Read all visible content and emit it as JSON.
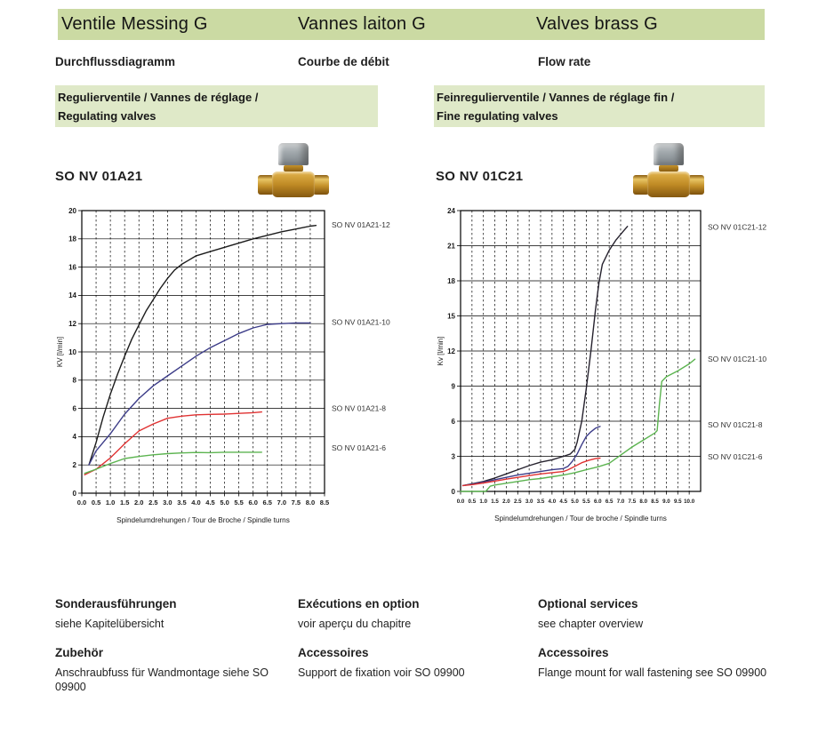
{
  "header": {
    "titles": [
      "Ventile Messing G",
      "Vannes laiton G",
      "Valves brass G"
    ],
    "bg_color": "#cbdaa3"
  },
  "subtitles": [
    "Durchflussdiagramm",
    "Courbe de débit",
    "Flow rate"
  ],
  "banners": [
    {
      "line1": "Regulierventile / Vannes de réglage /",
      "line2": "Regulating valves"
    },
    {
      "line1": "Feinregulierventile / Vannes de réglage fin /",
      "line2": "Fine regulating valves"
    }
  ],
  "banner_bg_color": "#dfe9c8",
  "products": [
    {
      "code": "SO NV 01A21"
    },
    {
      "code": "SO NV 01C21"
    }
  ],
  "footer": {
    "columns": [
      {
        "sections": [
          {
            "heading": "Sonderausführungen",
            "body": "siehe Kapitelübersicht"
          },
          {
            "heading": "Zubehör",
            "body": "Anschraubfuss für Wandmontage siehe SO 09900"
          }
        ]
      },
      {
        "sections": [
          {
            "heading": "Exécutions en option",
            "body": "voir aperçu du chapitre"
          },
          {
            "heading": "Accessoires",
            "body": "Support de fixation voir SO 09900"
          }
        ]
      },
      {
        "sections": [
          {
            "heading": "Optional services",
            "body": "see chapter overview"
          },
          {
            "heading": "Accessoires",
            "body": "Flange mount for wall fastening see SO 09900"
          }
        ]
      }
    ]
  },
  "chart_data": [
    {
      "type": "line",
      "product": "SO NV 01A21",
      "xlabel": "Spindelumdrehungen / Tour de Broche / Spindle turns",
      "ylabel": "KV [l/min]",
      "xlim": [
        0,
        8.5
      ],
      "ylim": [
        0,
        20
      ],
      "xtick_step": 0.5,
      "ytick_step": 2,
      "xtick_labels": [
        "0.0",
        "0.5",
        "1.0",
        "1.5",
        "2.0",
        "2.5",
        "3.0",
        "3.5",
        "4.0",
        "4.5",
        "5.0",
        "5.5",
        "6.0",
        "6.5",
        "7.0",
        "7.5",
        "8.0",
        "8.5"
      ],
      "grid": {
        "vertical": "dashed",
        "horizontal": "solid"
      },
      "legend_position": "right-of-plot",
      "series": [
        {
          "name": "SO NV 01A21-12",
          "color": "#1c1c1c",
          "label_y": 19.0,
          "points": [
            [
              0.25,
              2.0
            ],
            [
              0.5,
              3.6
            ],
            [
              0.75,
              5.4
            ],
            [
              1.0,
              7.0
            ],
            [
              1.25,
              8.4
            ],
            [
              1.5,
              9.7
            ],
            [
              1.75,
              10.9
            ],
            [
              2.0,
              11.9
            ],
            [
              2.25,
              12.9
            ],
            [
              2.5,
              13.7
            ],
            [
              2.75,
              14.5
            ],
            [
              3.0,
              15.2
            ],
            [
              3.25,
              15.8
            ],
            [
              3.5,
              16.2
            ],
            [
              3.75,
              16.5
            ],
            [
              4.0,
              16.8
            ],
            [
              4.5,
              17.1
            ],
            [
              5.0,
              17.4
            ],
            [
              5.5,
              17.7
            ],
            [
              6.0,
              18.0
            ],
            [
              6.5,
              18.25
            ],
            [
              7.0,
              18.5
            ],
            [
              7.5,
              18.7
            ],
            [
              8.0,
              18.9
            ],
            [
              8.2,
              18.95
            ]
          ]
        },
        {
          "name": "SO NV 01A21-10",
          "color": "#3c3c88",
          "label_y": 12.1,
          "points": [
            [
              0.25,
              2.0
            ],
            [
              0.5,
              3.0
            ],
            [
              1.0,
              4.2
            ],
            [
              1.5,
              5.6
            ],
            [
              2.0,
              6.7
            ],
            [
              2.5,
              7.6
            ],
            [
              3.0,
              8.3
            ],
            [
              3.5,
              9.0
            ],
            [
              4.0,
              9.7
            ],
            [
              4.5,
              10.3
            ],
            [
              5.0,
              10.8
            ],
            [
              5.5,
              11.3
            ],
            [
              6.0,
              11.7
            ],
            [
              6.5,
              11.95
            ],
            [
              7.0,
              12.0
            ],
            [
              7.5,
              12.05
            ],
            [
              8.0,
              12.05
            ]
          ]
        },
        {
          "name": "SO NV 01A21-8",
          "color": "#e03232",
          "label_y": 6.0,
          "points": [
            [
              0.1,
              1.3
            ],
            [
              0.5,
              1.7
            ],
            [
              1.0,
              2.5
            ],
            [
              1.5,
              3.5
            ],
            [
              2.0,
              4.4
            ],
            [
              2.5,
              4.9
            ],
            [
              3.0,
              5.3
            ],
            [
              3.5,
              5.45
            ],
            [
              4.0,
              5.55
            ],
            [
              4.5,
              5.58
            ],
            [
              5.0,
              5.6
            ],
            [
              5.5,
              5.65
            ],
            [
              6.0,
              5.7
            ],
            [
              6.3,
              5.75
            ]
          ]
        },
        {
          "name": "SO NV 01A21-6",
          "color": "#5cb450",
          "label_y": 3.2,
          "points": [
            [
              0.1,
              1.4
            ],
            [
              0.5,
              1.7
            ],
            [
              1.0,
              2.1
            ],
            [
              1.5,
              2.45
            ],
            [
              2.0,
              2.6
            ],
            [
              2.5,
              2.72
            ],
            [
              3.0,
              2.8
            ],
            [
              3.5,
              2.85
            ],
            [
              4.0,
              2.88
            ],
            [
              4.5,
              2.87
            ],
            [
              5.0,
              2.9
            ],
            [
              5.5,
              2.9
            ],
            [
              6.0,
              2.9
            ],
            [
              6.3,
              2.9
            ]
          ]
        }
      ]
    },
    {
      "type": "line",
      "product": "SO NV 01C21",
      "xlabel": "Spindelumdrehungen / Tour de broche / Spindle turns",
      "ylabel": "Kv [l/min]",
      "xlim": [
        0,
        10.5
      ],
      "ylim": [
        0,
        24
      ],
      "xtick_step": 0.5,
      "ytick_step": 3,
      "xtick_labels": [
        "0.0",
        "0.5",
        "1.0",
        "1.5",
        "2.0",
        "2.5",
        "3.0",
        "3.5",
        "4.0",
        "4.5",
        "5.0",
        "5.5",
        "6.0",
        "6.5",
        "7.0",
        "7.5",
        "8.0",
        "8.5",
        "9.0",
        "9.5",
        "10.0"
      ],
      "grid": {
        "vertical": "dashed",
        "horizontal": "solid"
      },
      "legend_position": "right-of-plot",
      "series": [
        {
          "name": "SO NV 01C21-12",
          "color": "#26222e",
          "label_y": 22.6,
          "points": [
            [
              0.1,
              0.5
            ],
            [
              0.5,
              0.65
            ],
            [
              1.0,
              0.85
            ],
            [
              1.5,
              1.15
            ],
            [
              2.0,
              1.5
            ],
            [
              2.5,
              1.85
            ],
            [
              3.0,
              2.2
            ],
            [
              3.5,
              2.5
            ],
            [
              4.0,
              2.7
            ],
            [
              4.5,
              3.0
            ],
            [
              4.8,
              3.2
            ],
            [
              5.0,
              3.6
            ],
            [
              5.1,
              4.2
            ],
            [
              5.3,
              6.0
            ],
            [
              5.5,
              8.8
            ],
            [
              5.7,
              12.0
            ],
            [
              5.9,
              15.5
            ],
            [
              6.05,
              17.8
            ],
            [
              6.2,
              19.4
            ],
            [
              6.5,
              20.6
            ],
            [
              6.8,
              21.5
            ],
            [
              7.1,
              22.2
            ],
            [
              7.3,
              22.65
            ]
          ]
        },
        {
          "name": "SO NV 01C21-10",
          "color": "#5cb450",
          "label_y": 11.3,
          "points": [
            [
              0.0,
              0.0
            ],
            [
              1.1,
              0.0
            ],
            [
              1.3,
              0.45
            ],
            [
              1.5,
              0.55
            ],
            [
              2.0,
              0.7
            ],
            [
              2.5,
              0.85
            ],
            [
              3.0,
              1.0
            ],
            [
              3.5,
              1.1
            ],
            [
              4.0,
              1.25
            ],
            [
              4.5,
              1.4
            ],
            [
              5.0,
              1.6
            ],
            [
              5.5,
              1.85
            ],
            [
              6.0,
              2.1
            ],
            [
              6.5,
              2.4
            ],
            [
              7.0,
              3.1
            ],
            [
              7.5,
              3.8
            ],
            [
              8.0,
              4.4
            ],
            [
              8.5,
              5.0
            ],
            [
              8.6,
              5.2
            ],
            [
              8.7,
              7.5
            ],
            [
              8.8,
              9.4
            ],
            [
              9.0,
              9.8
            ],
            [
              9.5,
              10.3
            ],
            [
              10.0,
              10.9
            ],
            [
              10.25,
              11.3
            ]
          ]
        },
        {
          "name": "SO NV 01C21-8",
          "color": "#3c3c88",
          "label_y": 5.7,
          "points": [
            [
              0.1,
              0.5
            ],
            [
              0.5,
              0.62
            ],
            [
              1.0,
              0.8
            ],
            [
              1.5,
              1.0
            ],
            [
              2.0,
              1.2
            ],
            [
              2.5,
              1.4
            ],
            [
              3.0,
              1.55
            ],
            [
              3.5,
              1.7
            ],
            [
              4.0,
              1.85
            ],
            [
              4.5,
              1.95
            ],
            [
              4.7,
              2.15
            ],
            [
              4.9,
              2.6
            ],
            [
              5.1,
              3.2
            ],
            [
              5.3,
              4.0
            ],
            [
              5.5,
              4.7
            ],
            [
              5.7,
              5.1
            ],
            [
              5.9,
              5.4
            ],
            [
              6.1,
              5.55
            ]
          ]
        },
        {
          "name": "SO NV 01C21-6",
          "color": "#e03232",
          "label_y": 2.95,
          "points": [
            [
              0.1,
              0.5
            ],
            [
              0.5,
              0.58
            ],
            [
              1.0,
              0.72
            ],
            [
              1.5,
              0.88
            ],
            [
              2.0,
              1.05
            ],
            [
              2.5,
              1.2
            ],
            [
              3.0,
              1.35
            ],
            [
              3.5,
              1.5
            ],
            [
              4.0,
              1.6
            ],
            [
              4.5,
              1.7
            ],
            [
              4.7,
              1.85
            ],
            [
              5.0,
              2.15
            ],
            [
              5.3,
              2.45
            ],
            [
              5.6,
              2.65
            ],
            [
              5.9,
              2.8
            ],
            [
              6.1,
              2.85
            ]
          ]
        }
      ]
    }
  ]
}
